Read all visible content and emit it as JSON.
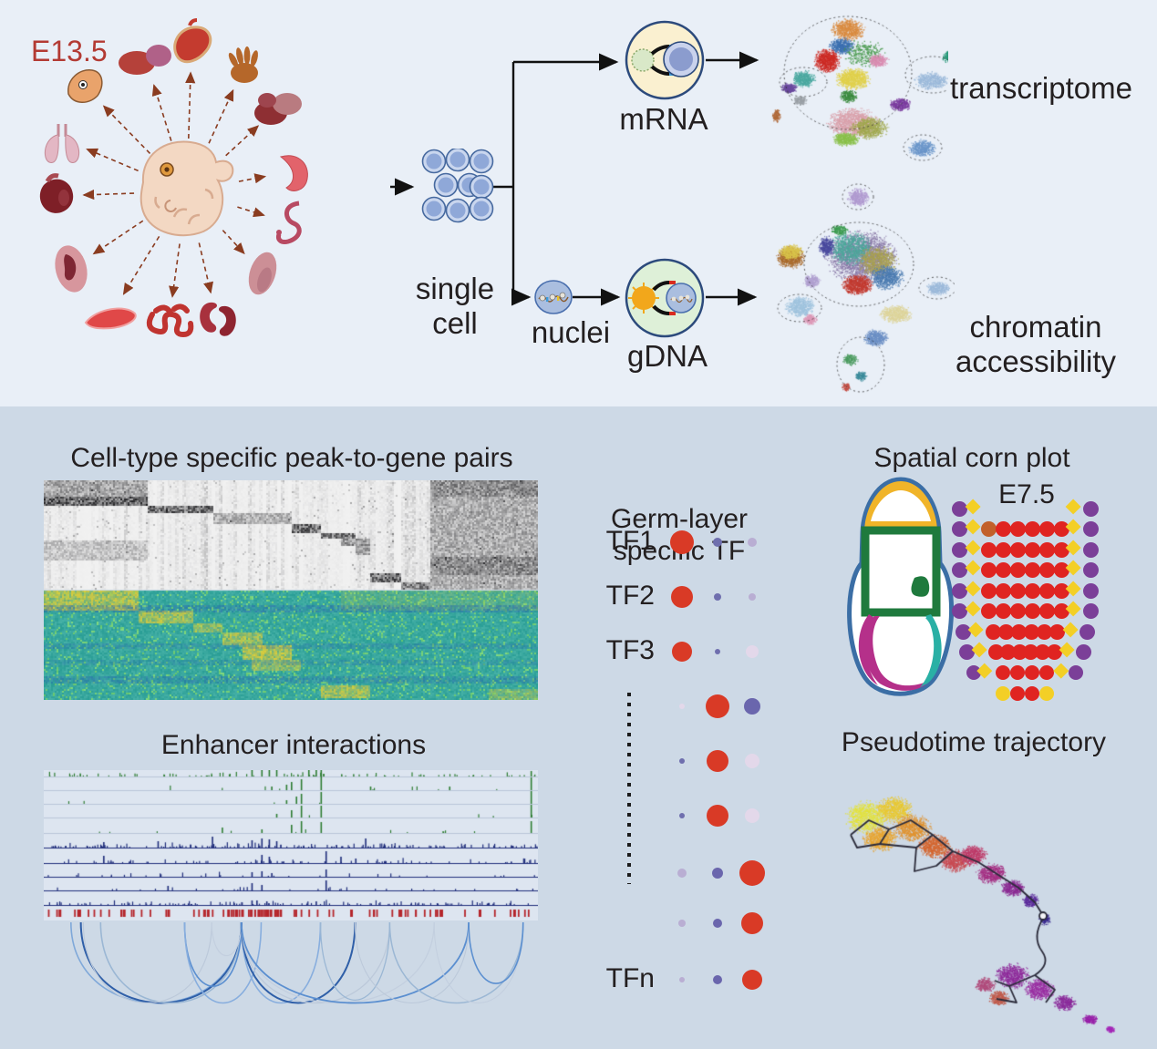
{
  "palette": {
    "top_bg": "#e9eff7",
    "bottom_bg": "#cdd9e6",
    "text": "#231f20",
    "stage_red": "#b33a33",
    "flow_line": "#111111",
    "organ_arrow": "#8a3c20",
    "cell_fill": "#8fa8d8",
    "cell_ring": "#c9d6ee",
    "cell_stroke": "#46699f",
    "mrna_fill": "#faf0d0",
    "gdna_fill": "#def0d8",
    "capsule_stroke": "#2c4a7c",
    "bead_green": "#d9e8c8",
    "sun_orange": "#f2a71b",
    "track_green": "#2e7d32",
    "track_navy": "#1f2d7b",
    "tick_red": "#b5252b",
    "dot_red": "#d93a26",
    "dot_purple": "#6f6fae",
    "dot_lavender": "#b9aed3",
    "dot_pale": "#e3d8ea",
    "dot_slate": "#6a66ad",
    "corn_purple": "#7b3f98",
    "corn_yellow": "#f3cf26",
    "corn_red": "#e02421",
    "corn_orange": "#c2602b"
  },
  "top": {
    "stage_label": "E13.5",
    "single_cell_line1": "single",
    "single_cell_line2": "cell",
    "mrna_label": "mRNA",
    "nuclei_label": "nuclei",
    "gdna_label": "gDNA",
    "transcriptome_label": "transcriptome",
    "chromatin_label_line1": "chromatin",
    "chromatin_label_line2": "accessibility",
    "organs": [
      "head-icon",
      "liver-lobes-icon",
      "stomach-icon",
      "limb-bud-icon",
      "liver-dark-icon",
      "spleen-icon",
      "gut-tube-icon",
      "muscle-icon",
      "kidneys-icon",
      "intestine-icon",
      "tongue-icon",
      "ear-icon",
      "heart-icon",
      "lungs-icon"
    ]
  },
  "bottom": {
    "heatmap_title": "Cell-type specific peak-to-gene pairs",
    "enhancer_title": "Enhancer interactions",
    "pseudotime_title": "Pseudotime trajectory",
    "dotplot": {
      "title_line1": "Germ-layer",
      "title_line2": "specific TF",
      "rows": [
        {
          "label": "TF1",
          "dots": [
            {
              "c": "dot_red",
              "r": 13
            },
            {
              "c": "dot_purple",
              "r": 5
            },
            {
              "c": "dot_lavender",
              "r": 5
            }
          ]
        },
        {
          "label": "TF2",
          "dots": [
            {
              "c": "dot_red",
              "r": 12
            },
            {
              "c": "dot_purple",
              "r": 4
            },
            {
              "c": "dot_lavender",
              "r": 4
            }
          ]
        },
        {
          "label": "TF3",
          "dots": [
            {
              "c": "dot_red",
              "r": 11
            },
            {
              "c": "dot_purple",
              "r": 3
            },
            {
              "c": "dot_pale",
              "r": 7
            }
          ]
        },
        {
          "label": "",
          "dots": [
            {
              "c": "dot_pale",
              "r": 3
            },
            {
              "c": "dot_red",
              "r": 13
            },
            {
              "c": "dot_slate",
              "r": 9
            }
          ]
        },
        {
          "label": "",
          "dots": [
            {
              "c": "dot_purple",
              "r": 3
            },
            {
              "c": "dot_red",
              "r": 12
            },
            {
              "c": "dot_pale",
              "r": 8
            }
          ]
        },
        {
          "label": "",
          "dots": [
            {
              "c": "dot_purple",
              "r": 3
            },
            {
              "c": "dot_red",
              "r": 12
            },
            {
              "c": "dot_pale",
              "r": 8
            }
          ]
        },
        {
          "label": "",
          "dots": [
            {
              "c": "dot_lavender",
              "r": 5
            },
            {
              "c": "dot_slate",
              "r": 6
            },
            {
              "c": "dot_red",
              "r": 14
            }
          ]
        },
        {
          "label": "",
          "dots": [
            {
              "c": "dot_lavender",
              "r": 4
            },
            {
              "c": "dot_slate",
              "r": 5
            },
            {
              "c": "dot_red",
              "r": 12
            }
          ]
        },
        {
          "label": "TFn",
          "dots": [
            {
              "c": "dot_lavender",
              "r": 3
            },
            {
              "c": "dot_slate",
              "r": 5
            },
            {
              "c": "dot_red",
              "r": 11
            }
          ]
        }
      ]
    },
    "cornplot": {
      "title": "Spatial corn plot",
      "stage": "E7.5",
      "rows": [
        [
          [
            -72,
            "P"
          ],
          [
            -55,
            "D"
          ],
          [
            55,
            "D"
          ],
          [
            72,
            "P"
          ]
        ],
        [
          [
            -72,
            "P"
          ],
          [
            -55,
            "D"
          ],
          [
            -40,
            "O"
          ],
          [
            -24,
            "R"
          ],
          [
            -8,
            "R"
          ],
          [
            8,
            "R"
          ],
          [
            24,
            "R"
          ],
          [
            40,
            "R"
          ],
          [
            55,
            "D"
          ],
          [
            72,
            "P"
          ]
        ],
        [
          [
            -72,
            "P"
          ],
          [
            -55,
            "D"
          ],
          [
            -40,
            "R"
          ],
          [
            -24,
            "R"
          ],
          [
            -8,
            "R"
          ],
          [
            8,
            "R"
          ],
          [
            24,
            "R"
          ],
          [
            40,
            "R"
          ],
          [
            55,
            "D"
          ],
          [
            72,
            "P"
          ]
        ],
        [
          [
            -72,
            "P"
          ],
          [
            -55,
            "D"
          ],
          [
            -40,
            "R"
          ],
          [
            -24,
            "R"
          ],
          [
            -8,
            "R"
          ],
          [
            8,
            "R"
          ],
          [
            24,
            "R"
          ],
          [
            40,
            "R"
          ],
          [
            55,
            "D"
          ],
          [
            72,
            "P"
          ]
        ],
        [
          [
            -72,
            "P"
          ],
          [
            -55,
            "D"
          ],
          [
            -40,
            "R"
          ],
          [
            -24,
            "R"
          ],
          [
            -8,
            "R"
          ],
          [
            8,
            "R"
          ],
          [
            24,
            "R"
          ],
          [
            40,
            "R"
          ],
          [
            55,
            "D"
          ],
          [
            72,
            "P"
          ]
        ],
        [
          [
            -72,
            "P"
          ],
          [
            -55,
            "D"
          ],
          [
            -40,
            "R"
          ],
          [
            -24,
            "R"
          ],
          [
            -8,
            "R"
          ],
          [
            8,
            "R"
          ],
          [
            24,
            "R"
          ],
          [
            40,
            "R"
          ],
          [
            55,
            "D"
          ],
          [
            72,
            "P"
          ]
        ],
        [
          [
            -68,
            "P"
          ],
          [
            -52,
            "D"
          ],
          [
            -35,
            "R"
          ],
          [
            -21,
            "R"
          ],
          [
            -7,
            "R"
          ],
          [
            7,
            "R"
          ],
          [
            21,
            "R"
          ],
          [
            35,
            "R"
          ],
          [
            52,
            "D"
          ],
          [
            68,
            "P"
          ]
        ],
        [
          [
            -64,
            "P"
          ],
          [
            -48,
            "D"
          ],
          [
            -32,
            "R"
          ],
          [
            -19,
            "R"
          ],
          [
            -6,
            "R"
          ],
          [
            6,
            "R"
          ],
          [
            19,
            "R"
          ],
          [
            32,
            "R"
          ],
          [
            48,
            "D"
          ],
          [
            64,
            "P"
          ]
        ],
        [
          [
            -56,
            "P"
          ],
          [
            -42,
            "D"
          ],
          [
            -24,
            "R"
          ],
          [
            -8,
            "R"
          ],
          [
            8,
            "R"
          ],
          [
            24,
            "R"
          ],
          [
            42,
            "D"
          ],
          [
            56,
            "P"
          ]
        ],
        [
          [
            -24,
            "Y"
          ],
          [
            -8,
            "R"
          ],
          [
            8,
            "R"
          ],
          [
            24,
            "Y"
          ]
        ]
      ]
    },
    "enhancer": {
      "arcs": [
        {
          "a": 0.055,
          "b": 0.4,
          "c": "#7fa8d9",
          "w": 1.6
        },
        {
          "a": 0.075,
          "b": 0.4,
          "c": "#2f5fa8",
          "w": 2.0
        },
        {
          "a": 0.115,
          "b": 0.4,
          "c": "#9bb7d4",
          "w": 1.6
        },
        {
          "a": 0.08,
          "b": 0.34,
          "c": "#bcc9da",
          "w": 1.2
        },
        {
          "a": 0.285,
          "b": 0.4,
          "c": "#5b8fd0",
          "w": 1.6
        },
        {
          "a": 0.285,
          "b": 0.44,
          "c": "#88aede",
          "w": 1.6
        },
        {
          "a": 0.34,
          "b": 0.4,
          "c": "#c3cfdf",
          "w": 1.2
        },
        {
          "a": 0.4,
          "b": 0.56,
          "c": "#88aede",
          "w": 1.6
        },
        {
          "a": 0.4,
          "b": 0.63,
          "c": "#2f5fa8",
          "w": 2.0
        },
        {
          "a": 0.4,
          "b": 0.7,
          "c": "#bcc9da",
          "w": 1.3
        },
        {
          "a": 0.4,
          "b": 0.79,
          "c": "#c3cfdf",
          "w": 1.3
        },
        {
          "a": 0.4,
          "b": 0.86,
          "c": "#5b8fd0",
          "w": 1.8
        },
        {
          "a": 0.56,
          "b": 0.7,
          "c": "#9bb7d4",
          "w": 1.3
        },
        {
          "a": 0.63,
          "b": 0.86,
          "c": "#bcc9da",
          "w": 1.1
        },
        {
          "a": 0.7,
          "b": 0.97,
          "c": "#9bb7d4",
          "w": 1.5
        },
        {
          "a": 0.79,
          "b": 0.97,
          "c": "#c3cfdf",
          "w": 1.1
        },
        {
          "a": 0.86,
          "b": 0.97,
          "c": "#5b8fd0",
          "w": 1.6
        }
      ]
    }
  }
}
